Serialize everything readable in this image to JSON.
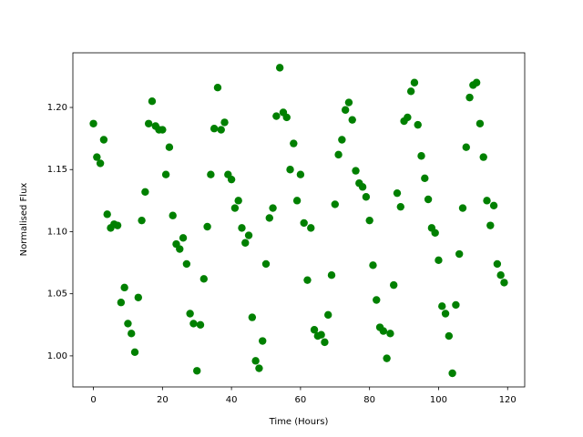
{
  "chart_data": {
    "type": "scatter",
    "x_label": "Time (Hours)",
    "y_label": "Normalised Flux",
    "color": "#008000",
    "x": [
      0,
      1,
      2,
      3,
      4,
      5,
      6,
      7,
      8,
      9,
      10,
      11,
      12,
      13,
      14,
      15,
      16,
      17,
      18,
      19,
      20,
      21,
      22,
      23,
      24,
      25,
      26,
      27,
      28,
      29,
      30,
      31,
      32,
      33,
      34,
      35,
      36,
      37,
      38,
      39,
      40,
      41,
      42,
      43,
      44,
      45,
      46,
      47,
      48,
      49,
      50,
      51,
      52,
      53,
      54,
      55,
      56,
      57,
      58,
      59,
      60,
      61,
      62,
      63,
      64,
      65,
      66,
      67,
      68,
      69,
      70,
      71,
      72,
      73,
      74,
      75,
      76,
      77,
      78,
      79,
      80,
      81,
      82,
      83,
      84,
      85,
      86,
      87,
      88,
      89,
      90,
      91,
      92,
      93,
      94,
      95,
      96,
      97,
      98,
      99,
      100,
      101,
      102,
      103,
      104,
      105,
      106,
      107,
      108,
      109,
      110,
      111,
      112,
      113,
      114,
      115,
      116,
      117,
      118,
      119
    ],
    "values": [
      1.187,
      1.16,
      1.155,
      1.174,
      1.114,
      1.103,
      1.106,
      1.105,
      1.043,
      1.055,
      1.026,
      1.018,
      1.003,
      1.047,
      1.109,
      1.132,
      1.187,
      1.205,
      1.185,
      1.182,
      1.182,
      1.146,
      1.168,
      1.113,
      1.09,
      1.086,
      1.095,
      1.074,
      1.034,
      1.026,
      0.988,
      1.025,
      1.062,
      1.104,
      1.146,
      1.183,
      1.216,
      1.182,
      1.188,
      1.146,
      1.142,
      1.119,
      1.125,
      1.103,
      1.091,
      1.097,
      1.031,
      0.996,
      0.99,
      1.012,
      1.074,
      1.111,
      1.119,
      1.193,
      1.232,
      1.196,
      1.192,
      1.15,
      1.171,
      1.125,
      1.146,
      1.107,
      1.061,
      1.103,
      1.021,
      1.016,
      1.017,
      1.011,
      1.033,
      1.065,
      1.122,
      1.162,
      1.174,
      1.198,
      1.204,
      1.19,
      1.149,
      1.139,
      1.136,
      1.128,
      1.109,
      1.073,
      1.045,
      1.023,
      1.02,
      0.998,
      1.018,
      1.057,
      1.131,
      1.12,
      1.189,
      1.192,
      1.213,
      1.22,
      1.186,
      1.161,
      1.143,
      1.126,
      1.103,
      1.099,
      1.077,
      1.04,
      1.034,
      1.016,
      0.986,
      1.041,
      1.082,
      1.119,
      1.168,
      1.208,
      1.218,
      1.22,
      1.187,
      1.16,
      1.125,
      1.105,
      1.121,
      1.074,
      1.065,
      1.059
    ],
    "xlim": [
      -5.95,
      124.95
    ],
    "ylim": [
      0.975,
      1.244
    ],
    "xticks": [
      0,
      20,
      40,
      60,
      80,
      100,
      120
    ],
    "yticks": [
      {
        "value": 1.0,
        "label": "1.00"
      },
      1.05,
      {
        "value": 1.1,
        "label": "1.10"
      },
      1.15,
      {
        "value": 1.2,
        "label": "1.20"
      }
    ]
  }
}
